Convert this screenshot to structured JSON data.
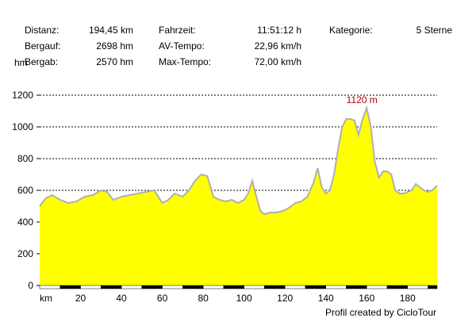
{
  "stats": {
    "distanz_label": "Distanz:",
    "distanz_value": "194,45 km",
    "bergauf_label": "Bergauf:",
    "bergauf_value": "2698 hm",
    "bergab_label": "Bergab:",
    "bergab_value": "2570 hm",
    "fahrzeit_label": "Fahrzeit:",
    "fahrzeit_value": "11:51:12 h",
    "avtempo_label": "AV-Tempo:",
    "avtempo_value": "22,96 km/h",
    "maxtempo_label": "Max-Tempo:",
    "maxtempo_value": "72,00 km/h",
    "kategorie_label": "Kategorie:",
    "kategorie_value": "5 Sterne"
  },
  "footer": {
    "credit": "Profil created by CicloTour"
  },
  "colors": {
    "fill": "#ffff00",
    "outline": "#b0b0b0",
    "axis": "#000000",
    "max_label": "#b00000"
  },
  "chart_data": {
    "type": "area",
    "ylabel": "hm",
    "xlabel": "km",
    "xlim": [
      0,
      194.45
    ],
    "ylim": [
      0,
      1200
    ],
    "grid": true,
    "x_ticks": [
      "km",
      "20",
      "40",
      "60",
      "80",
      "100",
      "120",
      "140",
      "160",
      "180"
    ],
    "y_ticks": [
      "0",
      "200",
      "400",
      "600",
      "800",
      "1000",
      "1200"
    ],
    "max_annotation": "1120 m",
    "x": [
      0,
      3,
      6,
      10,
      14,
      18,
      22,
      26,
      30,
      33,
      36,
      40,
      44,
      48,
      52,
      56,
      60,
      63,
      66,
      70,
      73,
      76,
      79,
      82,
      85,
      88,
      91,
      94,
      97,
      100,
      102,
      104,
      106,
      108,
      110,
      113,
      116,
      119,
      122,
      125,
      128,
      131,
      134,
      136,
      138,
      140,
      142,
      144,
      146,
      148,
      150,
      152,
      154,
      156,
      158,
      160,
      162,
      164,
      166,
      168,
      170,
      172,
      174,
      176,
      178,
      180,
      182,
      184,
      186,
      188,
      190,
      192,
      194.45
    ],
    "y": [
      500,
      550,
      570,
      540,
      520,
      530,
      560,
      570,
      600,
      590,
      540,
      560,
      570,
      580,
      590,
      600,
      520,
      540,
      580,
      560,
      600,
      660,
      700,
      690,
      560,
      540,
      530,
      540,
      520,
      540,
      580,
      660,
      560,
      470,
      450,
      460,
      460,
      470,
      490,
      520,
      530,
      560,
      650,
      740,
      620,
      580,
      600,
      700,
      860,
      1000,
      1050,
      1050,
      1040,
      950,
      1050,
      1120,
      1000,
      780,
      680,
      720,
      720,
      700,
      600,
      580,
      580,
      590,
      600,
      640,
      620,
      600,
      590,
      600,
      630
    ]
  }
}
